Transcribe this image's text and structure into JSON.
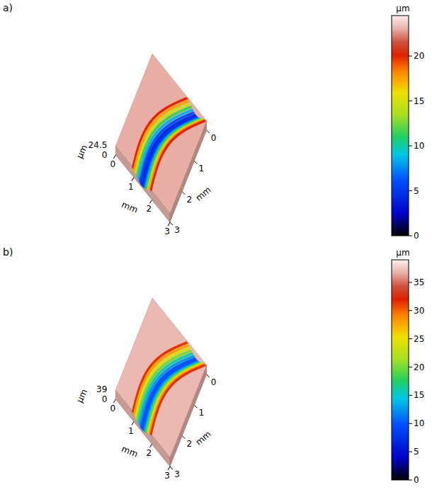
{
  "chart_data": [
    {
      "type": "surface",
      "panel": "a)",
      "z_label": "µm",
      "zlim": [
        0,
        24.5
      ],
      "zticks": [
        0,
        24.5
      ],
      "x_label": "mm",
      "xlim": [
        0,
        3
      ],
      "xticks": [
        0,
        1,
        2,
        3
      ],
      "y_label": "mm",
      "ylim": [
        0,
        3
      ],
      "yticks": [
        0,
        1,
        2,
        3
      ],
      "colorbar": {
        "label": "µm",
        "range": [
          0,
          24.5
        ],
        "ticks": [
          0,
          5,
          10,
          15,
          20
        ]
      },
      "surface_height": 23,
      "track_profile": [
        21,
        19,
        16,
        13,
        10,
        7,
        5,
        4,
        5,
        7,
        10,
        13,
        16,
        19,
        21
      ]
    },
    {
      "type": "surface",
      "panel": "b)",
      "z_label": "µm",
      "zlim": [
        0,
        39
      ],
      "zticks": [
        0,
        39
      ],
      "x_label": "mm",
      "xlim": [
        0,
        3
      ],
      "xticks": [
        0,
        1,
        2,
        3
      ],
      "y_label": "mm",
      "ylim": [
        0,
        3
      ],
      "yticks": [
        0,
        1,
        2,
        3
      ],
      "colorbar": {
        "label": "µm",
        "range": [
          0,
          39
        ],
        "ticks": [
          0,
          5,
          10,
          15,
          20,
          25,
          30,
          35
        ]
      },
      "surface_height": 37,
      "track_profile": [
        33,
        30,
        26,
        22,
        18,
        14,
        11,
        9,
        10,
        13,
        17,
        22,
        26,
        30,
        33
      ]
    }
  ]
}
